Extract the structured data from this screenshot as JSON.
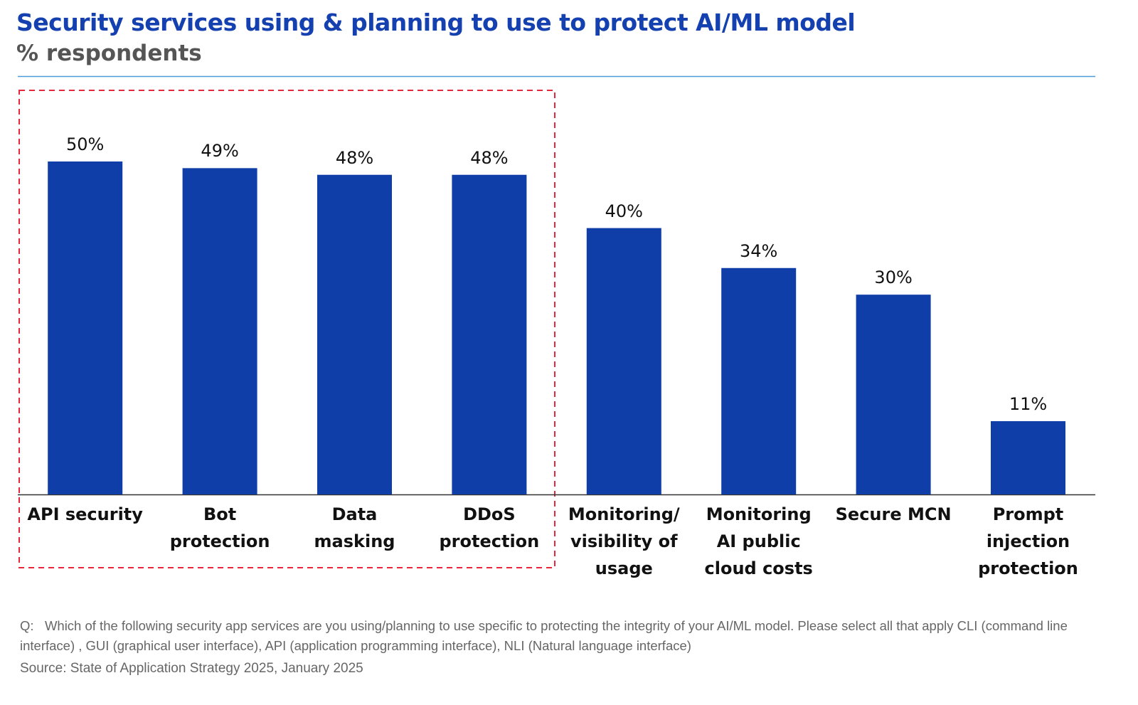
{
  "chart_data": {
    "type": "bar",
    "title": "Security services using & planning to use to protect AI/ML model",
    "subtitle": "% respondents",
    "categories": [
      "API security",
      "Bot\nprotection",
      "Data masking",
      "DDoS\nprotection",
      "Monitoring/\nvisibility of\nusage",
      "Monitoring\nAI public\ncloud costs",
      "Secure MCN",
      "Prompt\ninjection\nprotection"
    ],
    "values": [
      50,
      49,
      48,
      48,
      40,
      34,
      30,
      11
    ],
    "value_labels": [
      "50%",
      "49%",
      "48%",
      "48%",
      "40%",
      "34%",
      "30%",
      "11%"
    ],
    "color": "#0f3ea8",
    "note": "Q:   Which of the following security app services are you using/planning to use specific to protecting the integrity of your AI/ML model. Please select all that apply CLI (command line interface) , GUI (graphical user interface), API (application programming interface), NLI (Natural language interface)",
    "source": "Source: State of Application Strategy 2025, January 2025"
  }
}
